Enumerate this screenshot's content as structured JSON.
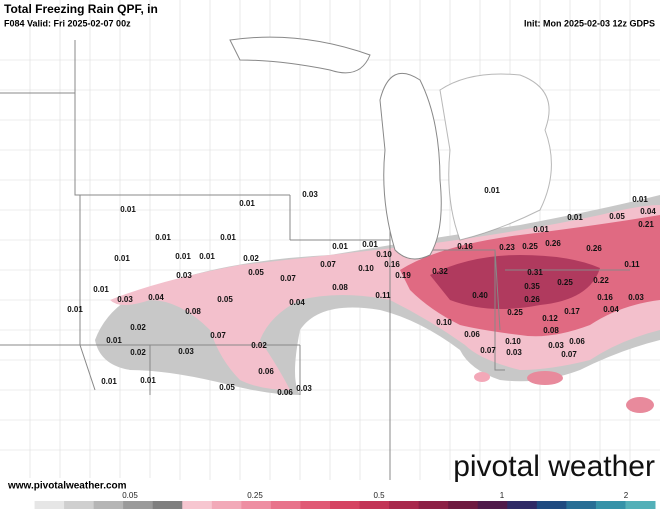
{
  "header": {
    "title": "Total Freezing Rain QPF, in",
    "valid": "F084 Valid: Fri 2025-02-07 00z",
    "init": "Init: Mon 2025-02-03 12z GDPS"
  },
  "labels": [
    "0.01",
    "0.01",
    "0.03",
    "0.01",
    "0.01",
    "0.01",
    "0.01",
    "0.01",
    "0.03",
    "0.02",
    "0.05",
    "0.07",
    "0.07",
    "0.01",
    "0.01",
    "0.10",
    "0.10",
    "0.16",
    "0.19",
    "0.01",
    "0.03",
    "0.04",
    "0.05",
    "0.04",
    "0.08",
    "0.11",
    "0.01",
    "0.08",
    "0.02",
    "0.07",
    "0.01",
    "0.02",
    "0.03",
    "0.02",
    "0.01",
    "0.01",
    "0.06",
    "0.05",
    "0.06",
    "0.03",
    "0.01",
    "0.16",
    "0.23",
    "0.25",
    "0.26",
    "0.01",
    "0.01",
    "0.26",
    "0.05",
    "0.01",
    "0.04",
    "0.21",
    "0.32",
    "0.31",
    "0.35",
    "0.25",
    "0.22",
    "0.11",
    "0.40",
    "0.26",
    "0.16",
    "0.03",
    "0.25",
    "0.17",
    "0.04",
    "0.12",
    "0.10",
    "0.06",
    "0.08",
    "0.10",
    "0.03",
    "0.06",
    "0.07",
    "0.03",
    "0.07"
  ],
  "colorbar": {
    "ticks": [
      "0.05",
      "0.25",
      "0.5",
      "1",
      "2"
    ]
  },
  "footer": {
    "website": "www.pivotalweather.com",
    "logo": "pivotal weather"
  }
}
